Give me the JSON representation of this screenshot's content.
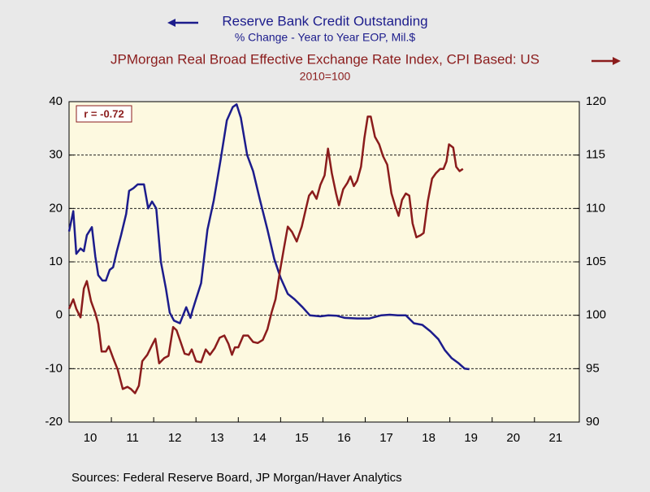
{
  "chart_data": {
    "type": "line",
    "title": "Reserve Bank Credit Outstanding",
    "subtitle": "% Change - Year to Year    EOP, Mil.$",
    "title2": "JPMorgan Real Broad Effective Exchange Rate Index, CPI Based: US",
    "subtitle2": "2010=100",
    "annotation": "r = -0.72",
    "source": "Sources:  Federal Reserve Board, JP Morgan/Haver Analytics",
    "xlim": [
      2010,
      2022.06
    ],
    "xticks": [
      {
        "value": 2010,
        "label": "10"
      },
      {
        "value": 2011,
        "label": "11"
      },
      {
        "value": 2012,
        "label": "12"
      },
      {
        "value": 2013,
        "label": "13"
      },
      {
        "value": 2014,
        "label": "14"
      },
      {
        "value": 2015,
        "label": "15"
      },
      {
        "value": 2016,
        "label": "16"
      },
      {
        "value": 2017,
        "label": "17"
      },
      {
        "value": 2018,
        "label": "18"
      },
      {
        "value": 2019,
        "label": "19"
      },
      {
        "value": 2020,
        "label": "20"
      },
      {
        "value": 2021,
        "label": "21"
      }
    ],
    "ylim": [
      -20,
      40
    ],
    "yticks": [
      -20,
      -10,
      0,
      10,
      20,
      30,
      40
    ],
    "y2lim": [
      90,
      120
    ],
    "y2ticks": [
      90,
      95,
      100,
      105,
      110,
      115,
      120
    ],
    "grid": true,
    "series": [
      {
        "name": "Reserve Bank Credit Outstanding",
        "color": "#1c1c8c",
        "axis": "y",
        "x": [
          2010.0,
          2010.1,
          2010.17,
          2010.27,
          2010.35,
          2010.42,
          2010.54,
          2010.62,
          2010.69,
          2010.79,
          2010.87,
          2010.96,
          2011.04,
          2011.13,
          2011.23,
          2011.35,
          2011.42,
          2011.52,
          2011.62,
          2011.77,
          2011.87,
          2011.96,
          2012.06,
          2012.17,
          2012.29,
          2012.38,
          2012.48,
          2012.62,
          2012.77,
          2012.87,
          2012.92,
          2013.0,
          2013.12,
          2013.27,
          2013.42,
          2013.58,
          2013.73,
          2013.87,
          2013.96,
          2014.06,
          2014.21,
          2014.35,
          2014.5,
          2014.69,
          2014.85,
          2015.0,
          2015.17,
          2015.33,
          2015.52,
          2015.69,
          2015.94,
          2016.13,
          2016.33,
          2016.52,
          2016.81,
          2017.1,
          2017.38,
          2017.58,
          2017.77,
          2017.96,
          2018.15,
          2018.35,
          2018.54,
          2018.73,
          2018.88,
          2019.04,
          2019.21,
          2019.35,
          2019.46
        ],
        "values": [
          15.7,
          19.5,
          11.5,
          12.5,
          12,
          15,
          16.5,
          11,
          7.5,
          6.5,
          6.5,
          8.5,
          9,
          12,
          15,
          19,
          23.3,
          23.8,
          24.5,
          24.5,
          20,
          21.3,
          20,
          10,
          5,
          0.5,
          -1,
          -1.5,
          1.5,
          -0.5,
          1,
          3,
          6,
          16,
          21.5,
          29,
          36.5,
          39,
          39.5,
          37,
          30,
          27,
          22,
          16,
          10.5,
          7,
          4,
          3,
          1.5,
          0,
          -0.2,
          0,
          -0.1,
          -0.5,
          -0.6,
          -0.6,
          0,
          0.1,
          0,
          0,
          -1.5,
          -1.8,
          -3,
          -4.5,
          -6.5,
          -8,
          -9,
          -10,
          -10.1
        ]
      },
      {
        "name": "JPMorgan Real Broad Effective Exchange Rate Index, CPI Based: US",
        "color": "#8b1c1c",
        "axis": "y2",
        "x": [
          2010.0,
          2010.1,
          2010.17,
          2010.27,
          2010.35,
          2010.42,
          2010.52,
          2010.62,
          2010.69,
          2010.77,
          2010.87,
          2010.94,
          2011.04,
          2011.15,
          2011.27,
          2011.38,
          2011.46,
          2011.56,
          2011.65,
          2011.73,
          2011.85,
          2011.96,
          2012.04,
          2012.13,
          2012.25,
          2012.35,
          2012.46,
          2012.54,
          2012.62,
          2012.73,
          2012.83,
          2012.9,
          2013.0,
          2013.12,
          2013.23,
          2013.33,
          2013.44,
          2013.56,
          2013.67,
          2013.77,
          2013.85,
          2013.92,
          2014.0,
          2014.12,
          2014.23,
          2014.35,
          2014.46,
          2014.58,
          2014.69,
          2014.79,
          2014.88,
          2014.98,
          2015.08,
          2015.17,
          2015.27,
          2015.38,
          2015.5,
          2015.6,
          2015.67,
          2015.75,
          2015.85,
          2015.94,
          2016.04,
          2016.12,
          2016.21,
          2016.31,
          2016.38,
          2016.48,
          2016.58,
          2016.65,
          2016.73,
          2016.81,
          2016.9,
          2016.98,
          2017.06,
          2017.13,
          2017.23,
          2017.33,
          2017.42,
          2017.52,
          2017.62,
          2017.71,
          2017.79,
          2017.87,
          2017.96,
          2018.04,
          2018.12,
          2018.21,
          2018.31,
          2018.38,
          2018.48,
          2018.58,
          2018.67,
          2018.77,
          2018.85,
          2018.92,
          2018.98,
          2019.08,
          2019.15,
          2019.23,
          2019.31
        ],
        "values": [
          100.6,
          101.5,
          100.6,
          99.8,
          102.5,
          103.2,
          101.3,
          100.2,
          99.2,
          96.6,
          96.6,
          97.1,
          96,
          94.9,
          93.1,
          93.3,
          93.1,
          92.7,
          93.4,
          95.7,
          96.3,
          97.2,
          97.8,
          95.5,
          96,
          96.2,
          98.9,
          98.6,
          97.7,
          96.4,
          96.3,
          96.8,
          95.7,
          95.6,
          96.8,
          96.3,
          96.9,
          97.9,
          98.1,
          97.3,
          96.3,
          97,
          97,
          98.1,
          98.1,
          97.5,
          97.4,
          97.7,
          98.7,
          100.3,
          101.5,
          104,
          106.3,
          108.3,
          107.8,
          106.9,
          108.3,
          110,
          111.2,
          111.6,
          110.9,
          112.2,
          113.1,
          115.6,
          113.3,
          111.4,
          110.3,
          111.8,
          112.4,
          113,
          112.1,
          112.6,
          113.9,
          116.6,
          118.6,
          118.6,
          116.7,
          116,
          114.9,
          114.1,
          111.4,
          110.2,
          109.3,
          110.8,
          111.4,
          111.2,
          108.6,
          107.3,
          107.5,
          107.7,
          110.7,
          112.8,
          113.3,
          113.7,
          113.7,
          114.4,
          116,
          115.7,
          113.9,
          113.5,
          113.7
        ]
      }
    ]
  }
}
